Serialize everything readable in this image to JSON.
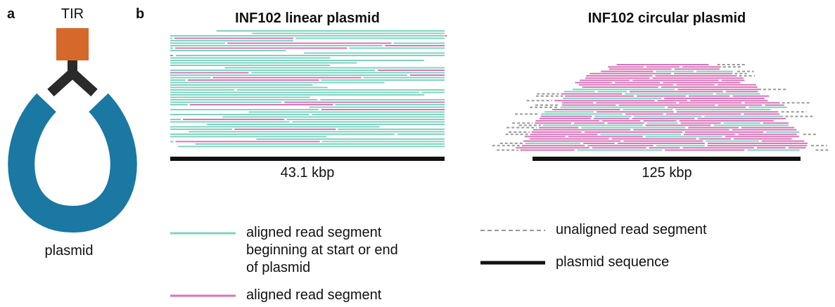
{
  "panel_a": {
    "label": "a",
    "tir": "TIR",
    "plasmid": "plasmid"
  },
  "panel_b": {
    "label": "b",
    "linear": {
      "title": "INF102 linear plasmid",
      "length": "43.1 kbp"
    },
    "circular": {
      "title": "INF102 circular plasmid",
      "length": "125 kbp"
    }
  },
  "legend": [
    {
      "lines": [
        "aligned read segment",
        "beginning at start or end",
        "of plasmid"
      ]
    },
    {
      "lines": [
        "aligned read segment"
      ]
    },
    {
      "lines": [
        "unaligned read segment"
      ]
    },
    {
      "lines": [
        "plasmid sequence"
      ]
    }
  ]
}
